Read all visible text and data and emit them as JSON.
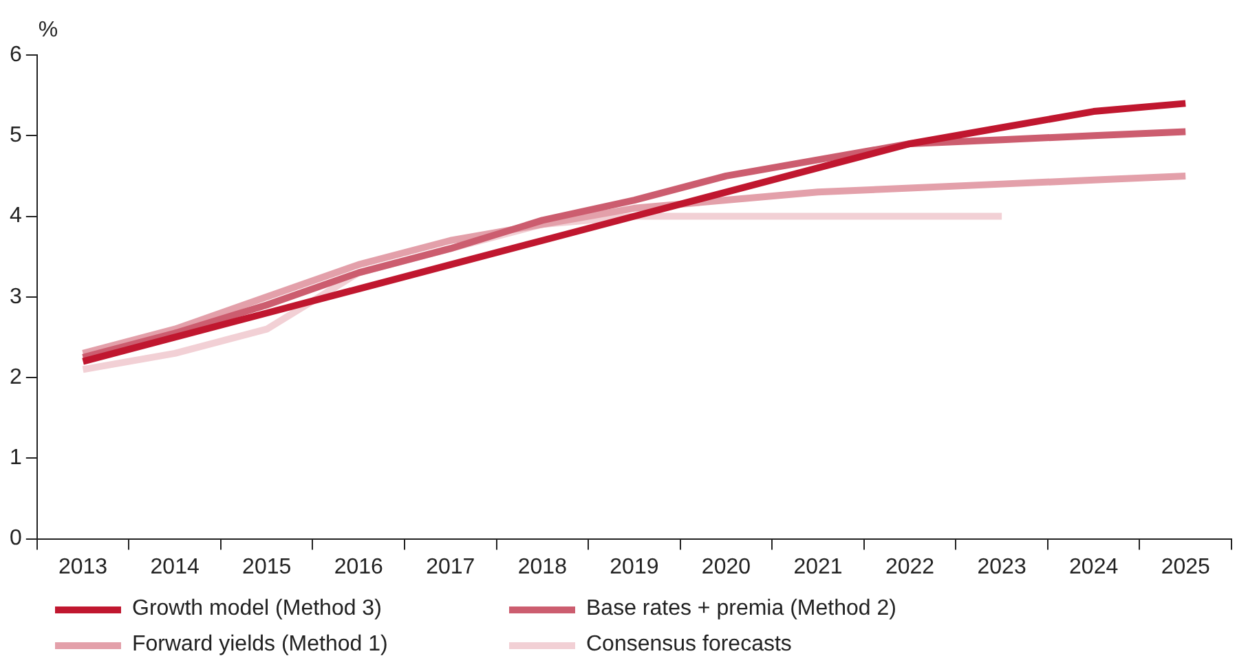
{
  "chart_data": {
    "type": "line",
    "ylabel": "%",
    "categories": [
      "2013",
      "2014",
      "2015",
      "2016",
      "2017",
      "2018",
      "2019",
      "2020",
      "2021",
      "2022",
      "2023",
      "2024",
      "2025"
    ],
    "series": [
      {
        "name": "Growth model (Method 3)",
        "color": "#c0172f",
        "values": [
          2.2,
          2.5,
          2.8,
          3.1,
          3.4,
          3.7,
          4.0,
          4.3,
          4.6,
          4.9,
          5.1,
          5.3,
          5.4
        ]
      },
      {
        "name": "Base rates + premia (Method 2)",
        "color": "#cc5d6f",
        "values": [
          2.25,
          2.55,
          2.9,
          3.3,
          3.6,
          3.95,
          4.2,
          4.5,
          4.7,
          4.9,
          4.95,
          5.0,
          5.05
        ]
      },
      {
        "name": "Forward yields (Method 1)",
        "color": "#e3a0aa",
        "values": [
          2.3,
          2.6,
          3.0,
          3.4,
          3.7,
          3.9,
          4.1,
          4.2,
          4.3,
          4.35,
          4.4,
          4.45,
          4.5
        ]
      },
      {
        "name": "Consensus forecasts",
        "color": "#f2d0d5",
        "values": [
          2.1,
          2.3,
          2.6,
          3.3,
          3.6,
          3.9,
          4.0,
          4.0,
          4.0,
          4.0,
          4.0,
          null,
          null
        ]
      }
    ],
    "ylim": [
      0,
      6
    ],
    "yticks": [
      0,
      1,
      2,
      3,
      4,
      5,
      6
    ],
    "grid": false,
    "legend": "bottom",
    "marker": "none",
    "line_style": "solid"
  }
}
